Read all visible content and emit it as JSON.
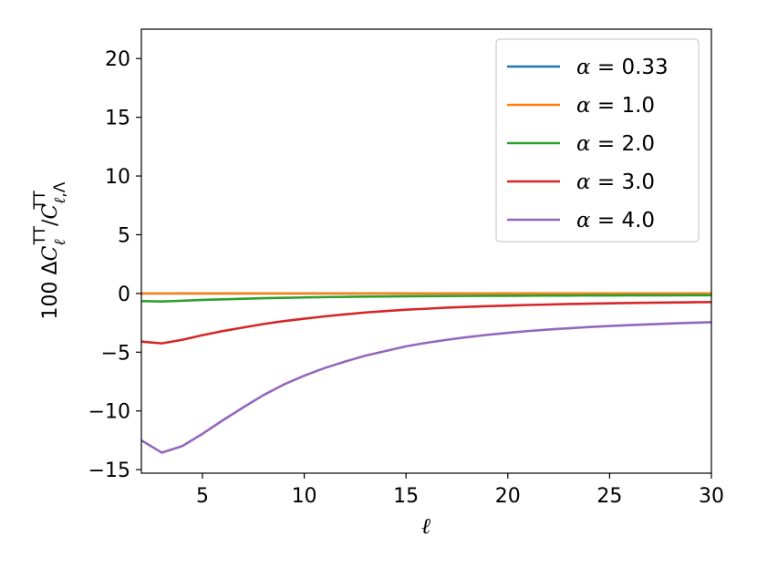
{
  "chart_data": {
    "type": "line",
    "xlabel": "ℓ",
    "ylabel": "100 ΔC_ℓ^TT/C_{ℓ,Λ}^TT",
    "xlim": [
      2,
      30
    ],
    "ylim": [
      -15.3,
      22.5
    ],
    "xticks": [
      5,
      10,
      15,
      20,
      25,
      30
    ],
    "yticks": [
      -15,
      -10,
      -5,
      0,
      5,
      10,
      15,
      20
    ],
    "grid": false,
    "legend_position": "top-right",
    "x": [
      2,
      3,
      4,
      5,
      6,
      7,
      8,
      9,
      10,
      11,
      12,
      13,
      14,
      15,
      16,
      17,
      18,
      19,
      20,
      21,
      22,
      23,
      24,
      25,
      26,
      27,
      28,
      29,
      30
    ],
    "series": [
      {
        "name": "α = 0.33",
        "color": "#1f77b4",
        "values": [
          0,
          0,
          0,
          0,
          0,
          0,
          0,
          0,
          0,
          0,
          0,
          0,
          0,
          0,
          0,
          0,
          0,
          0,
          0,
          0,
          0,
          0,
          0,
          0,
          0,
          0,
          0,
          0,
          0
        ]
      },
      {
        "name": "α = 1.0",
        "color": "#ff7f0e",
        "values": [
          0,
          0,
          0,
          0,
          0,
          0,
          0,
          0,
          0,
          0,
          0,
          0,
          0,
          0,
          0,
          0,
          0,
          0,
          0,
          0,
          0,
          0,
          0,
          0,
          0,
          0,
          0,
          0,
          0
        ]
      },
      {
        "name": "α = 2.0",
        "color": "#2ca02c",
        "values": [
          -0.65,
          -0.68,
          -0.62,
          -0.55,
          -0.5,
          -0.45,
          -0.4,
          -0.37,
          -0.34,
          -0.31,
          -0.29,
          -0.27,
          -0.26,
          -0.24,
          -0.23,
          -0.22,
          -0.21,
          -0.2,
          -0.2,
          -0.19,
          -0.18,
          -0.18,
          -0.17,
          -0.17,
          -0.16,
          -0.16,
          -0.16,
          -0.15,
          -0.15
        ]
      },
      {
        "name": "α = 3.0",
        "color": "#d62728",
        "values": [
          -4.1,
          -4.25,
          -3.95,
          -3.55,
          -3.2,
          -2.9,
          -2.6,
          -2.35,
          -2.15,
          -1.95,
          -1.78,
          -1.62,
          -1.5,
          -1.38,
          -1.3,
          -1.21,
          -1.14,
          -1.08,
          -1.03,
          -0.98,
          -0.94,
          -0.9,
          -0.87,
          -0.84,
          -0.81,
          -0.79,
          -0.77,
          -0.75,
          -0.73
        ]
      },
      {
        "name": "α = 4.0",
        "color": "#9467bd",
        "values": [
          -12.5,
          -13.55,
          -13.0,
          -11.95,
          -10.8,
          -9.7,
          -8.65,
          -7.75,
          -7.0,
          -6.35,
          -5.8,
          -5.3,
          -4.9,
          -4.5,
          -4.2,
          -3.95,
          -3.72,
          -3.52,
          -3.35,
          -3.2,
          -3.07,
          -2.96,
          -2.86,
          -2.77,
          -2.69,
          -2.62,
          -2.56,
          -2.5,
          -2.45
        ]
      }
    ]
  }
}
